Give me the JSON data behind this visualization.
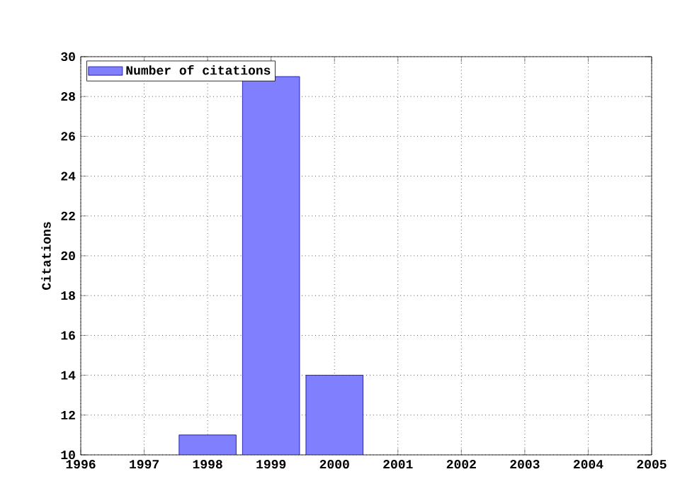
{
  "chart_data": {
    "type": "bar",
    "ylabel": "Citations",
    "x": [
      1998,
      1999,
      2000
    ],
    "series": [
      {
        "name": "Number of citations",
        "color": "#8080ff",
        "values": [
          11,
          29,
          14
        ]
      }
    ],
    "xlim": [
      1996,
      2005
    ],
    "xticks": [
      1996,
      1997,
      1998,
      1999,
      2000,
      2001,
      2002,
      2003,
      2004,
      2005
    ],
    "ylim": [
      10,
      30
    ],
    "yticks": [
      10,
      12,
      14,
      16,
      18,
      20,
      22,
      24,
      26,
      28,
      30
    ],
    "grid": true,
    "legend": "top left"
  }
}
